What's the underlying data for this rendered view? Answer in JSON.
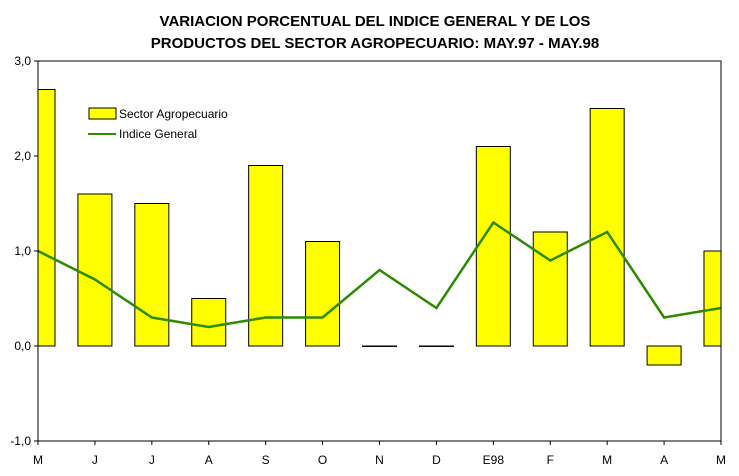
{
  "chart_data": {
    "type": "bar",
    "title": [
      "VARIACION PORCENTUAL DEL INDICE GENERAL Y DE LOS",
      "PRODUCTOS DEL SECTOR AGROPECUARIO: MAY.97 - MAY.98"
    ],
    "categories": [
      "M",
      "J",
      "J",
      "A",
      "S",
      "O",
      "N",
      "D",
      "E98",
      "F",
      "M",
      "A",
      "M"
    ],
    "series": [
      {
        "name": "Sector Agropecuario",
        "type": "bar",
        "color": "#FFFF00",
        "values": [
          2.7,
          1.6,
          1.5,
          0.5,
          1.9,
          1.1,
          0.0,
          0.0,
          2.1,
          1.2,
          2.5,
          -0.2,
          1.0
        ]
      },
      {
        "name": "Indice General",
        "type": "line",
        "color": "#2E8B00",
        "values": [
          1.0,
          0.7,
          0.3,
          0.2,
          0.3,
          0.3,
          0.8,
          0.4,
          1.3,
          0.9,
          1.2,
          0.3,
          0.4
        ]
      }
    ],
    "ylim": [
      -1,
      3
    ],
    "yticks": [
      "-1,0",
      "0,0",
      "1,0",
      "2,0",
      "3,0"
    ],
    "legend": "top-left",
    "xlabel": "",
    "ylabel": ""
  }
}
